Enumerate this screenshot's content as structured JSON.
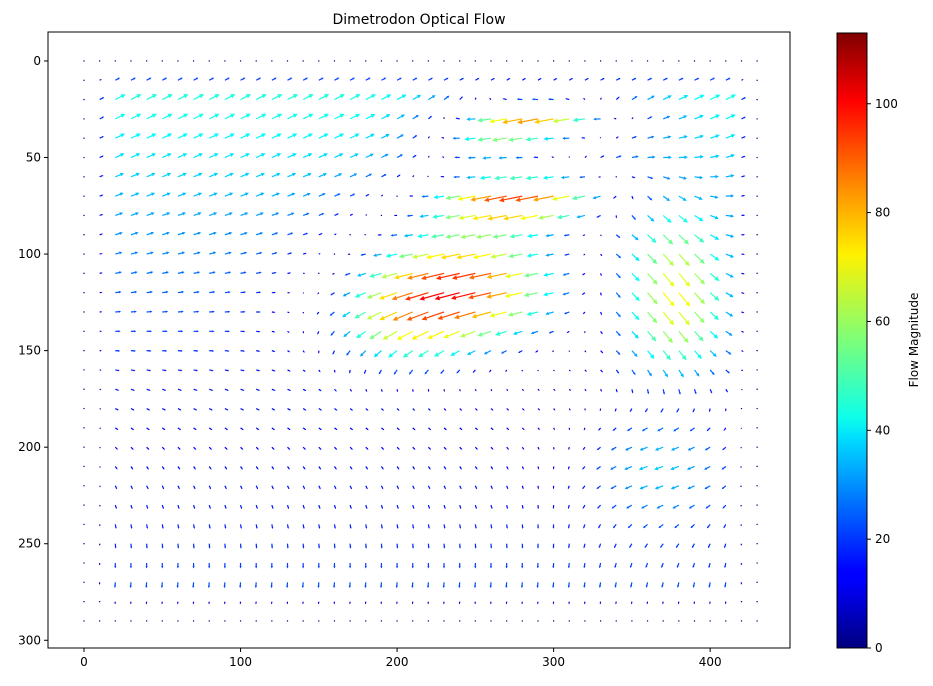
{
  "chart_data": {
    "type": "quiver",
    "title": "Dimetrodon Optical Flow",
    "xlabel": "",
    "ylabel": "",
    "colorbar_label": "Flow Magnitude",
    "colormap": "jet",
    "xlim": [
      -23,
      451
    ],
    "ylim": [
      304,
      -15
    ],
    "y_inverted": true,
    "grid": false,
    "x_ticks": [
      0,
      100,
      200,
      300,
      400
    ],
    "x_tick_labels": [
      "0",
      "100",
      "200",
      "300",
      "400"
    ],
    "y_ticks": [
      0,
      50,
      100,
      150,
      200,
      250,
      300
    ],
    "y_tick_labels": [
      "0",
      "50",
      "100",
      "150",
      "200",
      "250",
      "300"
    ],
    "colorbar_range": [
      0,
      113
    ],
    "colorbar_ticks": [
      0,
      20,
      40,
      60,
      80,
      100
    ],
    "colorbar_tick_labels": [
      "0",
      "20",
      "40",
      "60",
      "80",
      "100"
    ],
    "grid_x": {
      "start": 0,
      "step": 10,
      "count": 44
    },
    "grid_y": {
      "start": 0,
      "step": 10,
      "count": 30
    },
    "field": {
      "description": "flow vectors sampled every 10 px; magnitude encoded by jet colormap",
      "regions": [
        {
          "name": "border",
          "magnitude": 0
        },
        {
          "name": "background-left",
          "magnitude": 60,
          "direction": "up-right"
        },
        {
          "name": "body-core",
          "center": [
            260,
            110
          ],
          "magnitude": 110,
          "direction": "left"
        },
        {
          "name": "sail-top",
          "center": [
            300,
            30
          ],
          "magnitude": 100,
          "direction": "left"
        },
        {
          "name": "right-region",
          "center": [
            370,
            120
          ],
          "magnitude": 65,
          "direction": "down-right"
        },
        {
          "name": "bottom",
          "magnitude": 30,
          "direction": "down-left"
        }
      ]
    }
  }
}
